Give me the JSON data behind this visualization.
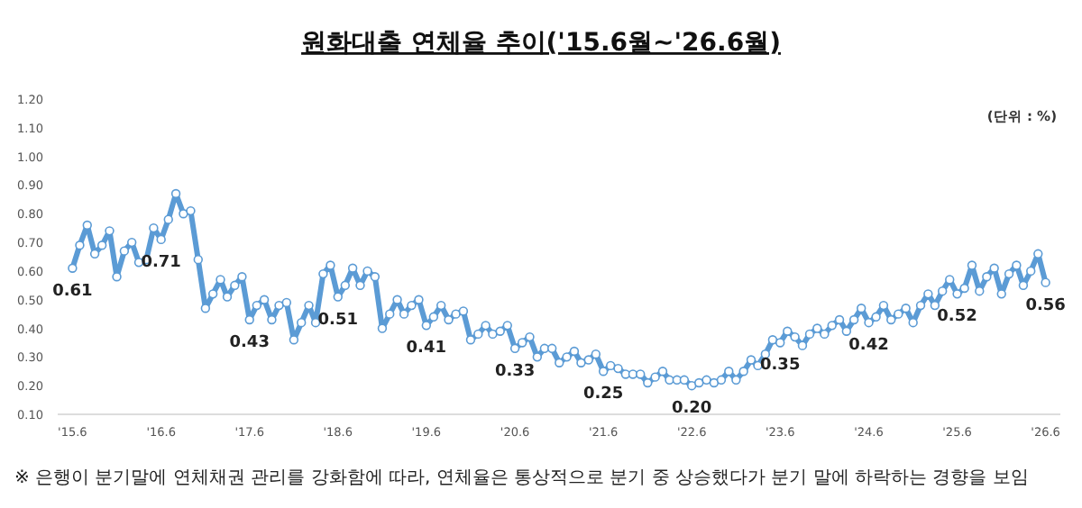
{
  "chart_data": {
    "type": "line",
    "title": "원화대출 연체율 추이('15.6월~'26.6월)",
    "annotations": [
      "(단위 : %)",
      "※ 은행이 분기말에 연체채권 관리를 강화함에 따라, 연체율은 통상적으로 분기 중 상승했다가 분기 말에 하락하는 경향을 보임"
    ],
    "x": [
      "2015-06",
      "2015-07",
      "2015-08",
      "2015-09",
      "2015-10",
      "2015-11",
      "2015-12",
      "2016-01",
      "2016-02",
      "2016-03",
      "2016-04",
      "2016-05",
      "2016-06",
      "2016-07",
      "2016-08",
      "2016-09",
      "2016-10",
      "2016-11",
      "2016-12",
      "2017-01",
      "2017-02",
      "2017-03",
      "2017-04",
      "2017-05",
      "2017-06",
      "2017-07",
      "2017-08",
      "2017-09",
      "2017-10",
      "2017-11",
      "2017-12",
      "2018-01",
      "2018-02",
      "2018-03",
      "2018-04",
      "2018-05",
      "2018-06",
      "2018-07",
      "2018-08",
      "2018-09",
      "2018-10",
      "2018-11",
      "2018-12",
      "2019-01",
      "2019-02",
      "2019-03",
      "2019-04",
      "2019-05",
      "2019-06",
      "2019-07",
      "2019-08",
      "2019-09",
      "2019-10",
      "2019-11",
      "2019-12",
      "2020-01",
      "2020-02",
      "2020-03",
      "2020-04",
      "2020-05",
      "2020-06",
      "2020-07",
      "2020-08",
      "2020-09",
      "2020-10",
      "2020-11",
      "2020-12",
      "2021-01",
      "2021-02",
      "2021-03",
      "2021-04",
      "2021-05",
      "2021-06",
      "2021-07",
      "2021-08",
      "2021-09",
      "2021-10",
      "2021-11",
      "2021-12",
      "2022-01",
      "2022-02",
      "2022-03",
      "2022-04",
      "2022-05",
      "2022-06",
      "2022-07",
      "2022-08",
      "2022-09",
      "2022-10",
      "2022-11",
      "2022-12",
      "2023-01",
      "2023-02",
      "2023-03",
      "2023-04",
      "2023-05",
      "2023-06",
      "2023-07",
      "2023-08",
      "2023-09",
      "2023-10",
      "2023-11",
      "2023-12",
      "2024-01",
      "2024-02",
      "2024-03",
      "2024-04",
      "2024-05",
      "2024-06",
      "2024-07",
      "2024-08",
      "2024-09",
      "2024-10",
      "2024-11",
      "2024-12",
      "2025-01",
      "2025-02",
      "2025-03",
      "2025-04",
      "2025-05",
      "2025-06",
      "2025-07",
      "2025-08",
      "2025-09",
      "2025-10",
      "2025-11",
      "2025-12",
      "2026-01",
      "2026-02",
      "2026-03",
      "2026-04",
      "2026-05",
      "2026-06"
    ],
    "series": [
      {
        "color": "#5b9bd5",
        "values": [
          0.61,
          0.69,
          0.76,
          0.66,
          0.69,
          0.74,
          0.58,
          0.67,
          0.7,
          0.63,
          0.64,
          0.75,
          0.71,
          0.78,
          0.87,
          0.8,
          0.81,
          0.64,
          0.47,
          0.52,
          0.57,
          0.51,
          0.55,
          0.58,
          0.43,
          0.48,
          0.5,
          0.43,
          0.48,
          0.49,
          0.36,
          0.42,
          0.48,
          0.42,
          0.59,
          0.62,
          0.51,
          0.55,
          0.61,
          0.55,
          0.6,
          0.58,
          0.4,
          0.45,
          0.5,
          0.45,
          0.48,
          0.5,
          0.41,
          0.44,
          0.48,
          0.43,
          0.45,
          0.46,
          0.36,
          0.38,
          0.41,
          0.38,
          0.39,
          0.41,
          0.33,
          0.35,
          0.37,
          0.3,
          0.33,
          0.33,
          0.28,
          0.3,
          0.32,
          0.28,
          0.29,
          0.31,
          0.25,
          0.27,
          0.26,
          0.24,
          0.24,
          0.24,
          0.21,
          0.23,
          0.25,
          0.22,
          0.22,
          0.22,
          0.2,
          0.21,
          0.22,
          0.21,
          0.22,
          0.25,
          0.22,
          0.25,
          0.29,
          0.27,
          0.31,
          0.36,
          0.35,
          0.39,
          0.37,
          0.34,
          0.38,
          0.4,
          0.38,
          0.41,
          0.43,
          0.39,
          0.43,
          0.47,
          0.42,
          0.44,
          0.48,
          0.43,
          0.45,
          0.47,
          0.42,
          0.48,
          0.52,
          0.48,
          0.53,
          0.57,
          0.52,
          0.54,
          0.62,
          0.53,
          0.58,
          0.61,
          0.52,
          0.59,
          0.62,
          0.55,
          0.6,
          0.66,
          0.56
        ],
        "value_labels": [
          "0.61",
          null,
          null,
          null,
          null,
          null,
          null,
          null,
          null,
          null,
          null,
          null,
          "0.71",
          null,
          null,
          null,
          null,
          null,
          null,
          null,
          null,
          null,
          null,
          null,
          "0.43",
          null,
          null,
          null,
          null,
          null,
          null,
          null,
          null,
          null,
          null,
          null,
          "0.51",
          null,
          null,
          null,
          null,
          null,
          null,
          null,
          null,
          null,
          null,
          null,
          "0.41",
          null,
          null,
          null,
          null,
          null,
          null,
          null,
          null,
          null,
          null,
          null,
          "0.33",
          null,
          null,
          null,
          null,
          null,
          null,
          null,
          null,
          null,
          null,
          null,
          "0.25",
          null,
          null,
          null,
          null,
          null,
          null,
          null,
          null,
          null,
          null,
          null,
          "0.20",
          null,
          null,
          null,
          null,
          null,
          null,
          null,
          null,
          null,
          null,
          null,
          "0.35",
          null,
          null,
          null,
          null,
          null,
          null,
          null,
          null,
          null,
          null,
          null,
          "0.42",
          null,
          null,
          null,
          null,
          null,
          null,
          null,
          null,
          null,
          null,
          null,
          "0.52",
          null,
          null,
          null,
          null,
          null,
          null,
          null,
          null,
          null,
          null,
          null,
          "0.56"
        ]
      }
    ],
    "xlim": [
      "2015-04",
      "2026-08"
    ],
    "xticks": [
      {
        "value": "2015-06",
        "label": "'15.6"
      },
      {
        "value": "2016-06",
        "label": "'16.6"
      },
      {
        "value": "2017-06",
        "label": "'17.6"
      },
      {
        "value": "2018-06",
        "label": "'18.6"
      },
      {
        "value": "2019-06",
        "label": "'19.6"
      },
      {
        "value": "2020-06",
        "label": "'20.6"
      },
      {
        "value": "2021-06",
        "label": "'21.6"
      },
      {
        "value": "2022-06",
        "label": "'22.6"
      },
      {
        "value": "2023-06",
        "label": "'23.6"
      },
      {
        "value": "2024-06",
        "label": "'24.6"
      },
      {
        "value": "2025-06",
        "label": "'25.6"
      },
      {
        "value": "2026-06",
        "label": "'26.6"
      }
    ],
    "ylim": [
      0.1,
      1.2
    ],
    "yticks": [
      {
        "value": 0.1,
        "label": "0.10"
      },
      {
        "value": 0.2,
        "label": "0.20"
      },
      {
        "value": 0.3,
        "label": "0.30"
      },
      {
        "value": 0.4,
        "label": "0.40"
      },
      {
        "value": 0.5,
        "label": "0.50"
      },
      {
        "value": 0.6,
        "label": "0.60"
      },
      {
        "value": 0.7,
        "label": "0.70"
      },
      {
        "value": 0.8,
        "label": "0.80"
      },
      {
        "value": 0.9,
        "label": "0.90"
      },
      {
        "value": 1.0,
        "label": "1.00"
      },
      {
        "value": 1.1,
        "label": "1.10"
      },
      {
        "value": 1.2,
        "label": "1.20"
      }
    ],
    "marker": "circle",
    "line_style": "solid"
  }
}
